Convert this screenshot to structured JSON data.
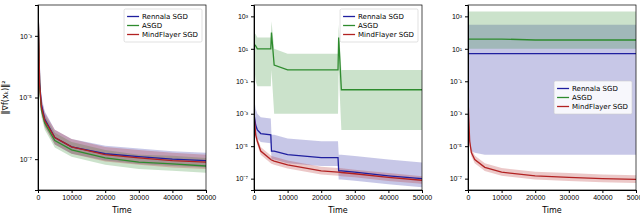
{
  "chart_data": [
    {
      "type": "line",
      "log": "y",
      "grid": false,
      "legend": "upper right",
      "x_label": "Time",
      "y_label": "‖∇f(xₖ)‖²",
      "x": [
        0,
        500,
        1000,
        2000,
        5000,
        10000,
        20000,
        30000,
        40000,
        50000
      ],
      "xlim": [
        0,
        50000
      ],
      "xticks": [
        0,
        10000,
        20000,
        30000,
        40000,
        50000
      ],
      "ylim": [
        1e-08,
        0.01
      ],
      "yticks": [
        {
          "value": 1e-07,
          "label": "10⁻⁷"
        },
        {
          "value": 1e-05,
          "label": "10⁻⁵"
        },
        {
          "value": 0.001,
          "label": "10⁻³"
        }
      ],
      "series": [
        {
          "name": "Rennala SGD",
          "color": "#1f1f9f",
          "values": [
            0.01,
            3e-05,
            6e-06,
            2e-06,
            5e-07,
            2.5e-07,
            1.5e-07,
            1.2e-07,
            1e-07,
            9e-08
          ],
          "lower": [
            0.006,
            1.8e-05,
            3.6e-06,
            1.2e-06,
            3e-07,
            1.5e-07,
            9e-08,
            7e-08,
            6e-08,
            5.4e-08
          ],
          "upper": [
            0.018,
            5.4e-05,
            1.1e-05,
            3.6e-06,
            9e-07,
            4.5e-07,
            2.7e-07,
            2.2e-07,
            1.8e-07,
            1.6e-07
          ]
        },
        {
          "name": "ASGD",
          "color": "#2e8b2e",
          "values": [
            0.01,
            2e-05,
            4e-06,
            1.5e-06,
            4e-07,
            2e-07,
            1.1e-07,
            8e-08,
            7e-08,
            6e-08
          ],
          "lower": [
            0.006,
            1.2e-05,
            2.4e-06,
            9e-07,
            2.4e-07,
            1.2e-07,
            6.6e-08,
            4.8e-08,
            4.2e-08,
            3.6e-08
          ],
          "upper": [
            0.018,
            3.6e-05,
            7.2e-06,
            2.7e-06,
            7.2e-07,
            3.6e-07,
            2e-07,
            1.4e-07,
            1.3e-07,
            1.1e-07
          ]
        },
        {
          "name": "MindFlayer SGD",
          "color": "#b22222",
          "values": [
            0.01,
            2.5e-05,
            5e-06,
            1.8e-06,
            5e-07,
            2.5e-07,
            1.4e-07,
            1.1e-07,
            9e-08,
            8e-08
          ],
          "lower": [
            0.006,
            1.5e-05,
            3e-06,
            1.1e-06,
            3e-07,
            1.5e-07,
            8.4e-08,
            6.6e-08,
            5.4e-08,
            4.8e-08
          ],
          "upper": [
            0.018,
            4.5e-05,
            9e-06,
            3.2e-06,
            9e-07,
            4.5e-07,
            2.5e-07,
            2e-07,
            1.6e-07,
            1.4e-07
          ]
        }
      ]
    },
    {
      "type": "line",
      "log": "y",
      "grid": false,
      "legend": "upper right",
      "x_label": "Time",
      "x": [
        0,
        500,
        1000,
        2000,
        5000,
        5200,
        6000,
        10000,
        20000,
        25000,
        25200,
        26000,
        30000,
        40000,
        50000
      ],
      "xlim": [
        0,
        50000
      ],
      "xticks": [
        0,
        10000,
        20000,
        30000,
        40000,
        50000
      ],
      "ylim": [
        2e-08,
        5000
      ],
      "yticks": [
        {
          "value": 1e-07,
          "label": "10⁻⁷"
        },
        {
          "value": 1e-05,
          "label": "10⁻⁵"
        },
        {
          "value": 0.001,
          "label": "10⁻³"
        },
        {
          "value": 0.1,
          "label": "10⁻¹"
        },
        {
          "value": 10,
          "label": "10¹"
        },
        {
          "value": 1000,
          "label": "10³"
        }
      ],
      "series": [
        {
          "name": "Rennala SGD",
          "color": "#1f1f9f",
          "values": [
            0.001,
            0.0002,
            0.0001,
            6e-05,
            5e-05,
            5e-06,
            5e-06,
            3e-06,
            2e-06,
            2e-06,
            3e-07,
            3e-07,
            2.5e-07,
            1.5e-07,
            1e-07
          ],
          "lower": [
            0.0003,
            6e-05,
            3e-05,
            1.8e-05,
            1.5e-05,
            1.5e-06,
            1.5e-06,
            9e-07,
            6e-07,
            6e-07,
            9e-08,
            9e-08,
            7.5e-08,
            4.5e-08,
            3e-08
          ],
          "upper": [
            0.01,
            0.002,
            0.001,
            0.0006,
            0.0005,
            5e-05,
            5e-05,
            3e-05,
            2e-05,
            2e-05,
            3e-06,
            3e-06,
            2.5e-06,
            1.5e-06,
            1e-06
          ]
        },
        {
          "name": "ASGD",
          "color": "#2e8b2e",
          "values": [
            20,
            15,
            10,
            10,
            10,
            100,
            1,
            0.5,
            0.5,
            0.5,
            50,
            0.03,
            0.03,
            0.03,
            0.03
          ],
          "lower": [
            1,
            0.1,
            0.05,
            0.05,
            0.05,
            0.5,
            0.001,
            0.001,
            0.001,
            0.001,
            0.5,
            0.0001,
            0.0001,
            0.0001,
            0.0001
          ],
          "upper": [
            100,
            80,
            50,
            50,
            50,
            500,
            10,
            5,
            5,
            5,
            300,
            0.5,
            0.5,
            0.5,
            0.5
          ]
        },
        {
          "name": "MindFlayer SGD",
          "color": "#b22222",
          "values": [
            0.001,
            5e-05,
            2e-05,
            5e-06,
            1.5e-06,
            1.4e-06,
            1.2e-06,
            7e-07,
            3e-07,
            2.5e-07,
            2.5e-07,
            2.4e-07,
            2e-07,
            1.2e-07,
            8e-08
          ],
          "lower": [
            0.0006,
            3e-05,
            1.2e-05,
            3e-06,
            9e-07,
            8.4e-07,
            7.2e-07,
            4.2e-07,
            1.8e-07,
            1.5e-07,
            1.5e-07,
            1.4e-07,
            1.2e-07,
            7.2e-08,
            4.8e-08
          ],
          "upper": [
            0.0018,
            9e-05,
            3.6e-05,
            9e-06,
            2.7e-06,
            2.5e-06,
            2.2e-06,
            1.3e-06,
            5.4e-07,
            4.5e-07,
            4.5e-07,
            4.3e-07,
            3.6e-07,
            2.2e-07,
            1.4e-07
          ]
        }
      ]
    },
    {
      "type": "line",
      "log": "y",
      "grid": false,
      "legend": "center right",
      "x_label": "Time",
      "x": [
        0,
        500,
        1000,
        2000,
        5000,
        10000,
        20000,
        30000,
        40000,
        50000
      ],
      "xlim": [
        0,
        50000
      ],
      "xticks": [
        0,
        10000,
        20000,
        30000,
        40000,
        50000
      ],
      "ylim": [
        2e-08,
        5000
      ],
      "yticks": [
        {
          "value": 1e-07,
          "label": "10⁻⁷"
        },
        {
          "value": 1e-05,
          "label": "10⁻⁵"
        },
        {
          "value": 0.001,
          "label": "10⁻³"
        },
        {
          "value": 0.1,
          "label": "10⁻¹"
        },
        {
          "value": 10,
          "label": "10¹"
        },
        {
          "value": 1000,
          "label": "10³"
        }
      ],
      "series": [
        {
          "name": "Rennala SGD",
          "color": "#1f1f9f",
          "values": [
            5,
            5,
            5,
            5,
            5,
            5,
            5,
            5,
            5,
            5
          ],
          "lower": [
            0.01,
            1e-05,
            5e-06,
            4e-06,
            3e-06,
            3e-06,
            3e-06,
            3e-06,
            3e-06,
            3e-06
          ],
          "upper": [
            300,
            300,
            300,
            300,
            300,
            300,
            300,
            300,
            300,
            300
          ]
        },
        {
          "name": "ASGD",
          "color": "#2e8b2e",
          "values": [
            40,
            40,
            40,
            40,
            40,
            40,
            35,
            35,
            35,
            35
          ],
          "lower": [
            10,
            10,
            10,
            10,
            10,
            10,
            10,
            10,
            10,
            10
          ],
          "upper": [
            2000,
            2000,
            2000,
            2000,
            2000,
            2000,
            2000,
            2000,
            2000,
            2000
          ]
        },
        {
          "name": "MindFlayer SGD",
          "color": "#b22222",
          "values": [
            0.01,
            2e-05,
            4e-06,
            1.5e-06,
            5e-07,
            2.5e-07,
            1.5e-07,
            1.2e-07,
            1e-07,
            9e-08
          ],
          "lower": [
            0.006,
            1.2e-05,
            2.4e-06,
            9e-07,
            3e-07,
            1.5e-07,
            9e-08,
            7.2e-08,
            6e-08,
            5.4e-08
          ],
          "upper": [
            0.018,
            3.6e-05,
            7.2e-06,
            2.7e-06,
            9e-07,
            4.5e-07,
            2.7e-07,
            2.2e-07,
            1.8e-07,
            1.6e-07
          ]
        }
      ]
    }
  ]
}
